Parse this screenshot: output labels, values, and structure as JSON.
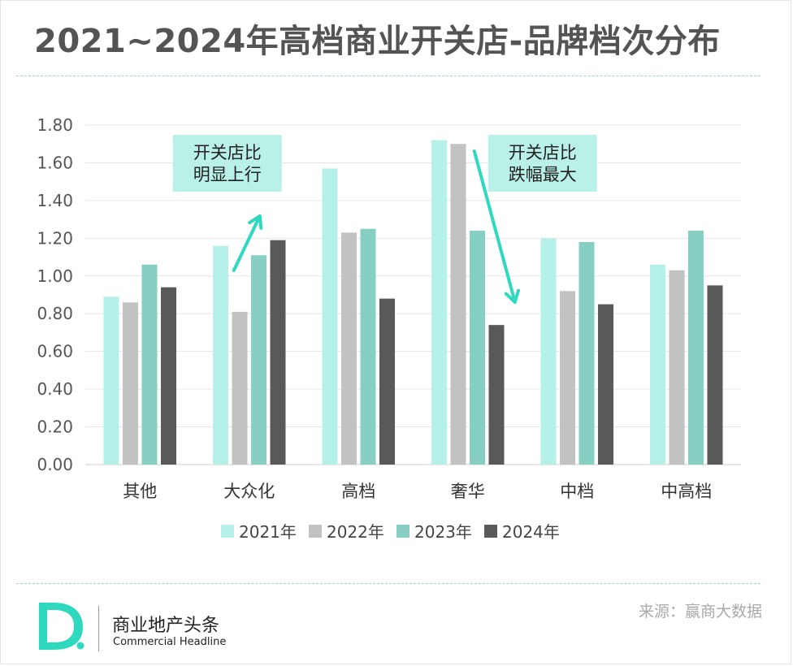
{
  "title": "2021~2024年高档商业开关店-品牌档次分布",
  "source": "来源：赢商大数据",
  "brand": {
    "logo_letter": "D.",
    "name_cn": "商业地产头条",
    "name_en": "Commercial Headline"
  },
  "colors": {
    "teal_accent": "#2ed9c0",
    "series": [
      "#b5f1e9",
      "#c2c2c2",
      "#86cfc2",
      "#595959"
    ],
    "callout_bg": "#b9f0e8",
    "logo": "#2ed9c0"
  },
  "chart_data": {
    "type": "bar",
    "categories": [
      "其他",
      "大众化",
      "高档",
      "奢华",
      "中档",
      "中高档"
    ],
    "series": [
      {
        "name": "2021年",
        "values": [
          0.89,
          1.16,
          1.57,
          1.72,
          1.2,
          1.06
        ]
      },
      {
        "name": "2022年",
        "values": [
          0.86,
          0.81,
          1.23,
          1.7,
          0.92,
          1.03
        ]
      },
      {
        "name": "2023年",
        "values": [
          1.06,
          1.11,
          1.25,
          1.24,
          1.18,
          1.24
        ]
      },
      {
        "name": "2024年",
        "values": [
          0.94,
          1.19,
          0.88,
          0.74,
          0.85,
          0.95
        ]
      }
    ],
    "ylim": [
      0,
      1.8
    ],
    "yticks": [
      "0.00",
      "0.20",
      "0.40",
      "0.60",
      "0.80",
      "1.00",
      "1.20",
      "1.40",
      "1.60",
      "1.80"
    ],
    "grid": true,
    "legend_position": "bottom",
    "annotations": [
      {
        "text_lines": [
          "开关店比",
          "明显上行"
        ],
        "category": "大众化",
        "arrow": "up"
      },
      {
        "text_lines": [
          "开关店比",
          "跌幅最大"
        ],
        "category": "奢华",
        "arrow": "down"
      }
    ]
  }
}
